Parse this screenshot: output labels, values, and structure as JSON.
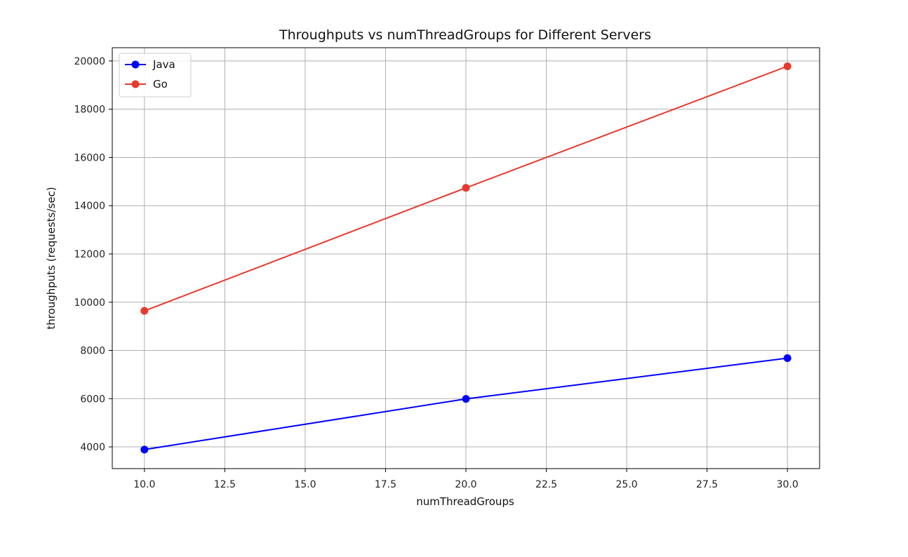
{
  "chart_data": {
    "type": "line",
    "title": "Throughputs vs numThreadGroups for Different Servers",
    "xlabel": "numThreadGroups",
    "ylabel": "throughputs (requests/sec)",
    "xlim": [
      9.0,
      31.0
    ],
    "ylim": [
      3100,
      20550
    ],
    "xticks": [
      10.0,
      12.5,
      15.0,
      17.5,
      20.0,
      22.5,
      25.0,
      27.5,
      30.0
    ],
    "xtick_labels": [
      "10.0",
      "12.5",
      "15.0",
      "17.5",
      "20.0",
      "22.5",
      "25.0",
      "27.5",
      "30.0"
    ],
    "yticks": [
      4000,
      6000,
      8000,
      10000,
      12000,
      14000,
      16000,
      18000,
      20000
    ],
    "ytick_labels": [
      "4000",
      "6000",
      "8000",
      "10000",
      "12000",
      "14000",
      "16000",
      "18000",
      "20000"
    ],
    "grid": true,
    "legend_position": "top-left",
    "x": [
      10,
      20,
      30
    ],
    "series": [
      {
        "name": "Java",
        "values": [
          3890,
          5990,
          7680
        ],
        "color": "#0000ff",
        "marker": "circle"
      },
      {
        "name": "Go",
        "values": [
          9640,
          14740,
          19780
        ],
        "color": "#e8392e",
        "marker": "circle"
      }
    ]
  }
}
